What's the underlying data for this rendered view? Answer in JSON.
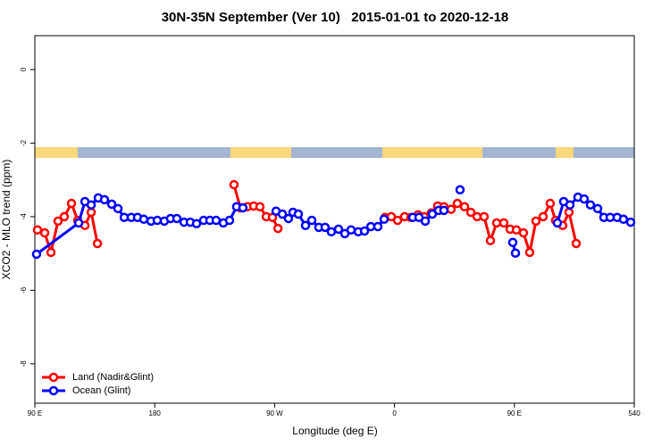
{
  "chart_data": {
    "type": "line",
    "title": "30N-35N September (Ver 10)   2015-01-01 to 2020-12-18",
    "xlabel": "Longitude (deg E)",
    "ylabel": "XCO2 - MLO trend (ppm)",
    "xlim": [
      90,
      540
    ],
    "ylim": [
      -9.07,
      0.92
    ],
    "xticks": [
      {
        "value": 90,
        "label": "90 E"
      },
      180,
      {
        "value": 270,
        "label": "90 W"
      },
      {
        "value": 360,
        "label": "0"
      },
      {
        "value": 450,
        "label": "90 E"
      },
      540
    ],
    "yticks": [
      0,
      -2,
      -4,
      -6,
      -8
    ],
    "grid": false,
    "legend": "bottom-left",
    "series": [
      {
        "name": "Land (Nadir&Glint)",
        "color": "#ff0000",
        "x": [
          92.0,
          97.4,
          102.1,
          107.4,
          112.1,
          117.5,
          122.2,
          127.6,
          132.3,
          137.0,
          null,
          239.5,
          244.3,
          249.6,
          254.3,
          259.0,
          263.7,
          268.4,
          272.5,
          null,
          352.9,
          357.6,
          362.3,
          367.6,
          372.3,
          377.7,
          382.4,
          387.7,
          392.4,
          397.1,
          402.5,
          407.2,
          412.6,
          417.3,
          422.0,
          427.3,
          432.0,
          436.7,
          442.1,
          446.8,
          451.5,
          456.8,
          461.5,
          466.2,
          471.6,
          476.9,
          480.9,
          486.3,
          491.0,
          496.4
        ],
        "values": [
          -4.36,
          -4.44,
          -4.97,
          -4.12,
          -4.0,
          -3.64,
          -4.1,
          -4.24,
          -3.88,
          -4.73,
          null,
          -3.13,
          -3.76,
          -3.73,
          -3.71,
          -3.73,
          -4.0,
          -4.02,
          -4.32,
          null,
          -4.02,
          -4.0,
          -4.1,
          -4.0,
          -4.02,
          -3.95,
          -4.0,
          -3.9,
          -3.71,
          -3.73,
          -3.8,
          -3.64,
          -3.73,
          -3.88,
          -4.0,
          -4.0,
          -4.65,
          -4.17,
          -4.17,
          -4.34,
          -4.36,
          -4.44,
          -4.97,
          -4.12,
          -4.0,
          -3.64,
          -4.1,
          -4.24,
          -3.88,
          -4.73
        ]
      },
      {
        "name": "Ocean (Glint)",
        "color": "#0000ff",
        "x": [
          91.3,
          122.9,
          127.6,
          132.3,
          137.6,
          142.3,
          147.7,
          152.4,
          157.1,
          162.4,
          167.1,
          171.8,
          177.2,
          181.9,
          187.2,
          191.9,
          196.6,
          202.0,
          206.7,
          211.4,
          216.7,
          221.4,
          226.1,
          231.5,
          236.2,
          241.5,
          246.2,
          null,
          271.1,
          275.8,
          280.4,
          283.8,
          287.8,
          293.2,
          297.9,
          303.2,
          307.9,
          312.6,
          318.0,
          322.7,
          327.4,
          332.8,
          337.5,
          342.2,
          347.5,
          352.2,
          null,
          373.7,
          378.4,
          383.1,
          388.4,
          393.1,
          397.1,
          null,
          409.2,
          null,
          448.8,
          450.8,
          null,
          482.3,
          487.0,
          491.7,
          497.7,
          502.4,
          507.1,
          512.5,
          517.2,
          521.9,
          527.2,
          531.9,
          537.3
        ],
        "values": [
          -5.02,
          -4.17,
          -3.59,
          -3.68,
          -3.49,
          -3.54,
          -3.66,
          -3.78,
          -4.02,
          -4.02,
          -4.02,
          -4.07,
          -4.12,
          -4.1,
          -4.12,
          -4.05,
          -4.05,
          -4.15,
          -4.15,
          -4.19,
          -4.1,
          -4.1,
          -4.1,
          -4.17,
          -4.1,
          -3.73,
          -3.76,
          null,
          -3.85,
          -3.93,
          -4.05,
          -3.88,
          -3.93,
          -4.24,
          -4.1,
          -4.29,
          -4.29,
          -4.41,
          -4.34,
          -4.46,
          -4.36,
          -4.41,
          -4.39,
          -4.27,
          -4.27,
          -4.07,
          null,
          -4.02,
          -4.02,
          -4.12,
          -3.93,
          -3.83,
          -3.83,
          null,
          -3.27,
          null,
          -4.7,
          -4.99,
          null,
          -4.17,
          -3.59,
          -3.68,
          -3.47,
          -3.52,
          -3.68,
          -3.78,
          -4.02,
          -4.02,
          -4.02,
          -4.07,
          -4.15
        ]
      }
    ]
  }
}
